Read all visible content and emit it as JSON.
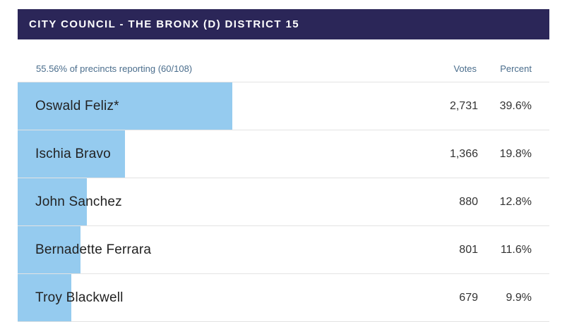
{
  "header": {
    "title": "CITY COUNCIL - THE BRONX (D) DISTRICT 15"
  },
  "table": {
    "precincts_reporting": "55.56% of precincts reporting (60/108)",
    "votes_label": "Votes",
    "percent_label": "Percent",
    "bar_color": "#95cbef",
    "candidates": [
      {
        "name": "Oswald Feliz*",
        "votes": "2,731",
        "percent": "39.6%",
        "share": 39.6
      },
      {
        "name": "Ischia Bravo",
        "votes": "1,366",
        "percent": "19.8%",
        "share": 19.8
      },
      {
        "name": "John Sanchez",
        "votes": "880",
        "percent": "12.8%",
        "share": 12.8
      },
      {
        "name": "Bernadette Ferrara",
        "votes": "801",
        "percent": "11.6%",
        "share": 11.6
      },
      {
        "name": "Troy Blackwell",
        "votes": "679",
        "percent": "9.9%",
        "share": 9.9
      }
    ]
  }
}
